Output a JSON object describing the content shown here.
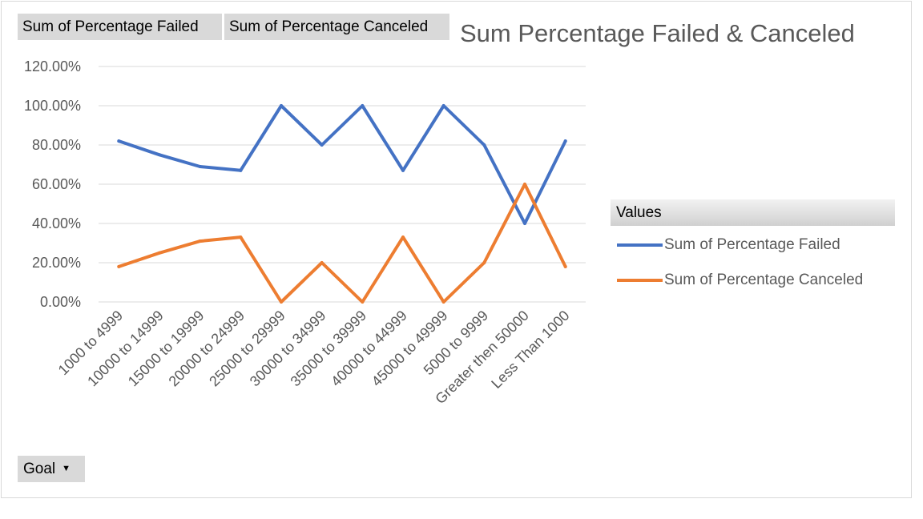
{
  "field_buttons": {
    "failed": "Sum of Percentage Failed",
    "canceled": "Sum of Percentage Canceled",
    "goal": "Goal"
  },
  "legend": {
    "header": "Values",
    "items": [
      {
        "label": "Sum of Percentage Failed",
        "color": "#4472c4"
      },
      {
        "label": "Sum of Percentage Canceled",
        "color": "#ed7d31"
      }
    ]
  },
  "chart_data": {
    "type": "line",
    "title": "Sum Percentage Failed & Canceled",
    "xlabel": "",
    "ylabel": "",
    "ylim": [
      0,
      120
    ],
    "y_ticks": [
      "0.00%",
      "20.00%",
      "40.00%",
      "60.00%",
      "80.00%",
      "100.00%",
      "120.00%"
    ],
    "grid": true,
    "legend_position": "right",
    "categories": [
      "1000 to 4999",
      "10000 to 14999",
      "15000 to 19999",
      "20000 to 24999",
      "25000 to 29999",
      "30000 to 34999",
      "35000 to 39999",
      "40000 to 44999",
      "45000 to 49999",
      "5000 to 9999",
      "Greater then 50000",
      "Less Than 1000"
    ],
    "series": [
      {
        "name": "Sum of Percentage Failed",
        "color": "#4472c4",
        "values": [
          82,
          75,
          69,
          67,
          100,
          80,
          100,
          67,
          100,
          80,
          40,
          82
        ]
      },
      {
        "name": "Sum of Percentage Canceled",
        "color": "#ed7d31",
        "values": [
          18,
          25,
          31,
          33,
          0,
          20,
          0,
          33,
          0,
          20,
          60,
          18
        ]
      }
    ]
  }
}
